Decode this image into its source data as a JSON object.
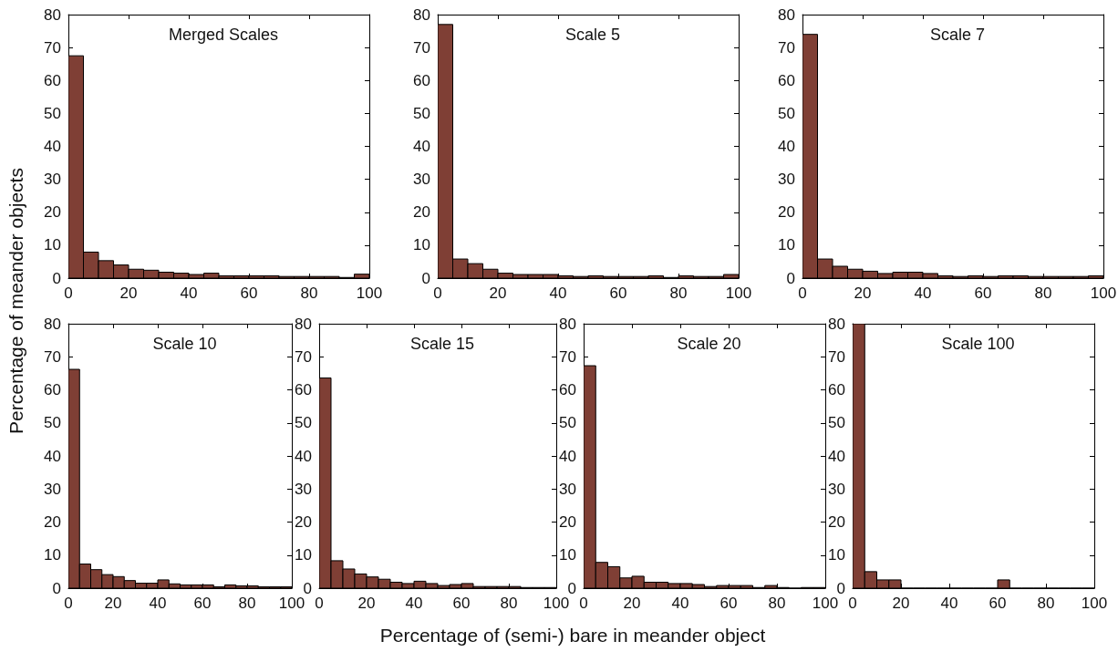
{
  "chart_data": [
    {
      "type": "histogram",
      "title": "Merged Scales",
      "ylabel": "Percentage of meander objects",
      "color": "#7f3f35",
      "bins": [
        0,
        5,
        10,
        15,
        20,
        25,
        30,
        35,
        40,
        45,
        50,
        55,
        60,
        65,
        70,
        75,
        80,
        85,
        90,
        95,
        100
      ],
      "values": [
        67.5,
        7.9,
        5.3,
        4,
        2.7,
        2.4,
        1.8,
        1.5,
        1.1,
        1.5,
        0.7,
        0.7,
        0.7,
        0.7,
        0.5,
        0.5,
        0.5,
        0.5,
        0.2,
        1.2
      ],
      "xlim": [
        0,
        100
      ],
      "xticks": [
        0,
        20,
        40,
        60,
        80,
        100
      ],
      "ylim": [
        0,
        80
      ],
      "yticks": [
        0,
        10,
        20,
        30,
        40,
        50,
        60,
        70,
        80
      ],
      "grid": false
    },
    {
      "type": "histogram",
      "title": "Scale 5",
      "color": "#7f3f35",
      "bins": [
        0,
        5,
        10,
        15,
        20,
        25,
        30,
        35,
        40,
        45,
        50,
        55,
        60,
        65,
        70,
        75,
        80,
        85,
        90,
        95,
        100
      ],
      "values": [
        77,
        5.8,
        4.4,
        2.7,
        1.5,
        1.1,
        1.1,
        1.1,
        0.7,
        0.5,
        0.7,
        0.5,
        0.5,
        0.5,
        0.7,
        0.2,
        0.7,
        0.5,
        0.5,
        1.1
      ],
      "xlim": [
        0,
        100
      ],
      "xticks": [
        0,
        20,
        40,
        60,
        80,
        100
      ],
      "ylim": [
        0,
        80
      ],
      "yticks": [
        0,
        10,
        20,
        30,
        40,
        50,
        60,
        70,
        80
      ],
      "grid": false
    },
    {
      "type": "histogram",
      "title": "Scale 7",
      "color": "#7f3f35",
      "bins": [
        0,
        5,
        10,
        15,
        20,
        25,
        30,
        35,
        40,
        45,
        50,
        55,
        60,
        65,
        70,
        75,
        80,
        85,
        90,
        95,
        100
      ],
      "values": [
        74,
        5.8,
        3.6,
        2.7,
        2.1,
        1.4,
        1.8,
        1.8,
        1.4,
        0.7,
        0.5,
        0.7,
        0.5,
        0.7,
        0.7,
        0.5,
        0.5,
        0.5,
        0.5,
        0.7
      ],
      "xlim": [
        0,
        100
      ],
      "xticks": [
        0,
        20,
        40,
        60,
        80,
        100
      ],
      "ylim": [
        0,
        80
      ],
      "yticks": [
        0,
        10,
        20,
        30,
        40,
        50,
        60,
        70,
        80
      ],
      "grid": false
    },
    {
      "type": "histogram",
      "title": "Scale 10",
      "color": "#7f3f35",
      "bins": [
        0,
        5,
        10,
        15,
        20,
        25,
        30,
        35,
        40,
        45,
        50,
        55,
        60,
        65,
        70,
        75,
        80,
        85,
        90,
        95,
        100
      ],
      "values": [
        66.2,
        7.3,
        5.6,
        4.1,
        3.5,
        2.3,
        1.5,
        1.5,
        2.5,
        1.3,
        1,
        1,
        1,
        0.4,
        1,
        0.7,
        0.7,
        0.4,
        0.4,
        0.4
      ],
      "xlim": [
        0,
        100
      ],
      "xticks": [
        0,
        20,
        40,
        60,
        80,
        100
      ],
      "ylim": [
        0,
        80
      ],
      "yticks": [
        0,
        10,
        20,
        30,
        40,
        50,
        60,
        70,
        80
      ],
      "grid": false
    },
    {
      "type": "histogram",
      "title": "Scale 15",
      "xlabel": "Percentage of (semi-) bare in meander object",
      "color": "#7f3f35",
      "bins": [
        0,
        5,
        10,
        15,
        20,
        25,
        30,
        35,
        40,
        45,
        50,
        55,
        60,
        65,
        70,
        75,
        80,
        85,
        90,
        95,
        100
      ],
      "values": [
        63.6,
        8.3,
        5.8,
        4.3,
        3.4,
        2.7,
        1.8,
        1.4,
        2.1,
        1.4,
        0.8,
        1.1,
        1.4,
        0.5,
        0.5,
        0.5,
        0.5,
        0.2,
        0.2,
        0.2
      ],
      "xlim": [
        0,
        100
      ],
      "xticks": [
        0,
        20,
        40,
        60,
        80,
        100
      ],
      "ylim": [
        0,
        80
      ],
      "yticks": [
        0,
        10,
        20,
        30,
        40,
        50,
        60,
        70,
        80
      ],
      "grid": false
    },
    {
      "type": "histogram",
      "title": "Scale 20",
      "color": "#7f3f35",
      "bins": [
        0,
        5,
        10,
        15,
        20,
        25,
        30,
        35,
        40,
        45,
        50,
        55,
        60,
        65,
        70,
        75,
        80,
        85,
        90,
        95,
        100
      ],
      "values": [
        67.3,
        7.8,
        6.5,
        3.1,
        3.6,
        1.8,
        1.8,
        1.4,
        1.4,
        1.1,
        0.5,
        0.8,
        0.8,
        0.8,
        0.2,
        0.8,
        0.2,
        0,
        0.2,
        0.2
      ],
      "xlim": [
        0,
        100
      ],
      "xticks": [
        0,
        20,
        40,
        60,
        80,
        100
      ],
      "ylim": [
        0,
        80
      ],
      "yticks": [
        0,
        10,
        20,
        30,
        40,
        50,
        60,
        70,
        80
      ],
      "grid": false
    },
    {
      "type": "histogram",
      "title": "Scale 100",
      "color": "#7f3f35",
      "bins": [
        0,
        5,
        10,
        15,
        20,
        25,
        30,
        35,
        40,
        45,
        50,
        55,
        60,
        65,
        70,
        75,
        80,
        85,
        90,
        95,
        100
      ],
      "values": [
        80,
        5,
        2.5,
        2.5,
        0,
        0,
        0,
        0,
        0,
        0,
        0,
        0,
        2.5,
        0,
        0,
        0,
        0,
        0,
        0,
        0
      ],
      "xlim": [
        0,
        100
      ],
      "xticks": [
        0,
        20,
        40,
        60,
        80,
        100
      ],
      "ylim": [
        0,
        80
      ],
      "yticks": [
        0,
        10,
        20,
        30,
        40,
        50,
        60,
        70,
        80
      ],
      "grid": false
    }
  ]
}
